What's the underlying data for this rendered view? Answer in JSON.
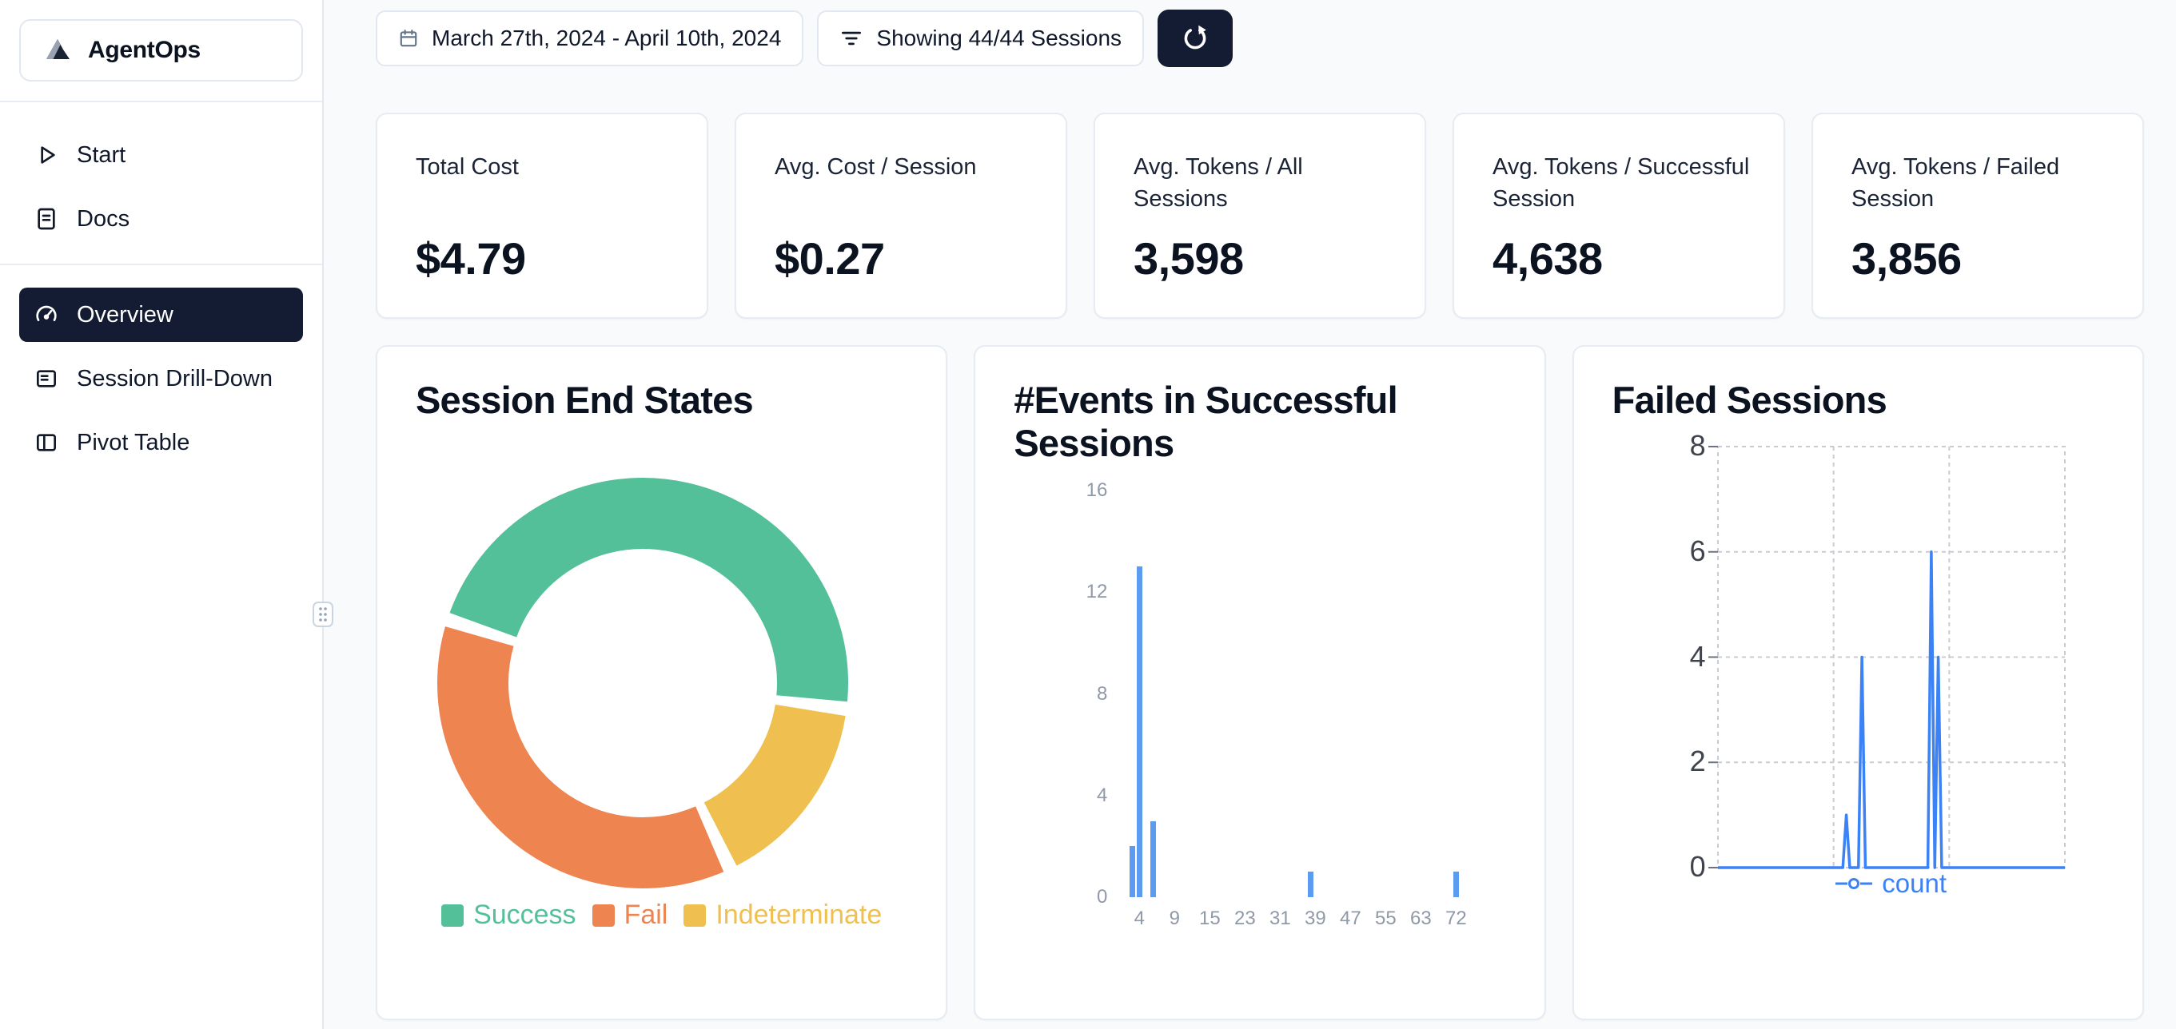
{
  "app": {
    "name": "AgentOps"
  },
  "sidebar": {
    "nav_top": [
      {
        "label": "Start"
      },
      {
        "label": "Docs"
      }
    ],
    "nav_main": [
      {
        "label": "Overview",
        "active": true
      },
      {
        "label": "Session Drill-Down",
        "active": false
      },
      {
        "label": "Pivot Table",
        "active": false
      }
    ]
  },
  "topbar": {
    "date_range": "March 27th, 2024 - April 10th, 2024",
    "filter": "Showing 44/44 Sessions"
  },
  "stats": [
    {
      "label": "Total Cost",
      "value": "$4.79"
    },
    {
      "label": "Avg. Cost / Session",
      "value": "$0.27"
    },
    {
      "label": "Avg. Tokens / All Sessions",
      "value": "3,598"
    },
    {
      "label": "Avg. Tokens / Successful Session",
      "value": "4,638"
    },
    {
      "label": "Avg. Tokens / Failed Session",
      "value": "3,856"
    }
  ],
  "chart_data": [
    {
      "type": "pie",
      "donut": true,
      "title": "Session End States",
      "labels": [
        "Success",
        "Fail",
        "Indeterminate"
      ],
      "values": [
        47,
        37,
        16
      ],
      "unit": "percent (estimated from arc angles)",
      "colors": [
        "#53c09a",
        "#ee8450",
        "#efc050"
      ],
      "start_angle": 288,
      "draw_order": [
        0,
        2,
        1
      ],
      "legend_position": "bottom"
    },
    {
      "type": "bar",
      "title": "#Events in Successful Sessions",
      "x_tick_labels": [
        4,
        9,
        15,
        23,
        31,
        39,
        47,
        55,
        63,
        72
      ],
      "y_ticks": [
        0,
        4,
        8,
        12,
        16
      ],
      "ylim": [
        0,
        16
      ],
      "bars": [
        {
          "x": 3,
          "count": 2
        },
        {
          "x": 4,
          "count": 13
        },
        {
          "x": 6,
          "count": 3
        },
        {
          "x": 38,
          "count": 1
        },
        {
          "x": 72,
          "count": 1
        }
      ],
      "color": "#5b9bf2",
      "grid": false
    },
    {
      "type": "line",
      "title": "Failed Sessions",
      "y_ticks": [
        0,
        2,
        4,
        6,
        8
      ],
      "ylim": [
        0,
        8
      ],
      "xlim": [
        0,
        100
      ],
      "grid": "dashed",
      "legend_position": "bottom",
      "series": [
        {
          "name": "count",
          "color": "#3b82f6",
          "points": [
            [
              0,
              0
            ],
            [
              36,
              0
            ],
            [
              37,
              1
            ],
            [
              38,
              0
            ],
            [
              40.5,
              0
            ],
            [
              41.5,
              4
            ],
            [
              42.5,
              0
            ],
            [
              60.5,
              0
            ],
            [
              61.5,
              6
            ],
            [
              62.5,
              0
            ],
            [
              63.5,
              4
            ],
            [
              64.5,
              0
            ],
            [
              100,
              0
            ]
          ]
        }
      ]
    }
  ],
  "colors": {
    "accent_navy": "#141c33",
    "page_bg": "#f8fafc",
    "card_border": "#e7ebf2",
    "success": "#53c09a",
    "fail": "#ee8450",
    "indeterminate": "#efc050",
    "bar_blue": "#5b9bf2",
    "line_blue": "#3b82f6"
  }
}
